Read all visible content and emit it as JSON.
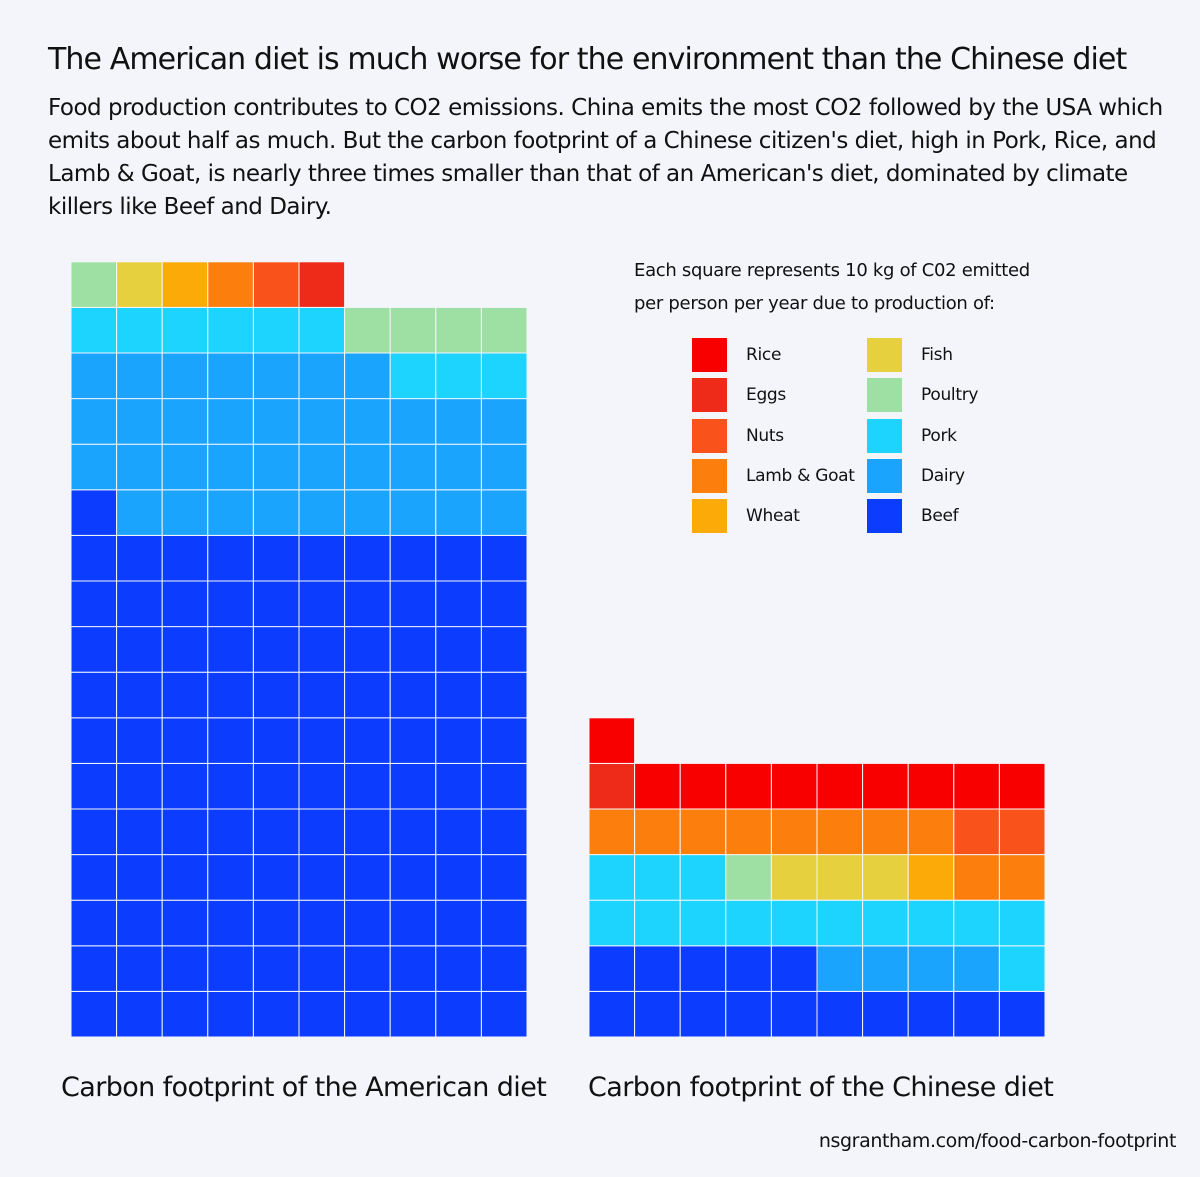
{
  "title": "The American diet is much worse for the environment than the Chinese diet",
  "subtitle_lines": [
    "Food production contributes to CO2 emissions. China emits the most CO2 followed by the USA which",
    "emits about half as much. But the carbon footprint of a Chinese citizen's diet, high in Pork, Rice, and",
    "Lamb & Goat, is nearly three times smaller than that of an American's diet, dominated by climate",
    "killers like Beef and Dairy."
  ],
  "legend": {
    "title_lines": [
      "Each square represents 10 kg of C02 emitted",
      "per person per year due to production of:"
    ]
  },
  "source": "nsgrantham.com/food-carbon-footprint",
  "chart_data": {
    "type": "waffle",
    "unit": "10 kg of C02 emitted per person per year",
    "categories": [
      {
        "name": "Rice",
        "color": "#f80000"
      },
      {
        "name": "Eggs",
        "color": "#ee2a18"
      },
      {
        "name": "Nuts",
        "color": "#f9521a"
      },
      {
        "name": "Lamb & Goat",
        "color": "#fc7e0c"
      },
      {
        "name": "Wheat",
        "color": "#fbaa08"
      },
      {
        "name": "Fish",
        "color": "#e6d03e"
      },
      {
        "name": "Poultry",
        "color": "#9ee0a4"
      },
      {
        "name": "Pork",
        "color": "#1cd4fe"
      },
      {
        "name": "Dairy",
        "color": "#1aa4fd"
      },
      {
        "name": "Beef",
        "color": "#0c3cfd"
      }
    ],
    "columns_per_row": 10,
    "series": [
      {
        "name": "Carbon footprint of the American diet",
        "squares": {
          "Beef": 111,
          "Dairy": 36,
          "Pork": 9,
          "Poultry": 5,
          "Fish": 1,
          "Lamb & Goat": 1,
          "Wheat": 1,
          "Nuts": 1,
          "Eggs": 1,
          "Rice": 0
        }
      },
      {
        "name": "Carbon footprint of the Chinese diet",
        "squares": {
          "Beef": 15,
          "Dairy": 4,
          "Pork": 14,
          "Poultry": 1,
          "Fish": 3,
          "Lamb & Goat": 10,
          "Wheat": 1,
          "Nuts": 2,
          "Eggs": 1,
          "Rice": 10
        }
      }
    ]
  }
}
